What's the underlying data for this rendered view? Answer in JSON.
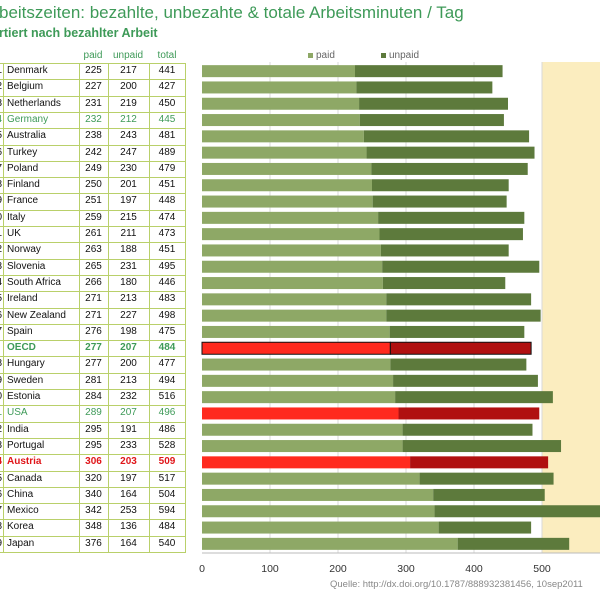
{
  "title": "beitszeiten: bezahlte, unbezahte & totale Arbeitsminuten / Tag",
  "subtitle": "rtiert nach bezahlter Arbeit",
  "table_headers": {
    "paid": "paid",
    "unpaid": "unpaid",
    "total": "total"
  },
  "legend": {
    "paid": "paid",
    "unpaid": "unpaid"
  },
  "source": "Quelle: http://dx.doi.org/10.1787/888932381456, 10sep2011",
  "colors": {
    "paid": "#8ea866",
    "unpaid": "#5d7a3c",
    "highlight_paid": "#ff2a1e",
    "highlight_unpaid": "#b01010",
    "background_band": "#fbedbf",
    "green_text": "#3e9a58",
    "red_text": "#e0161a"
  },
  "chart_data": {
    "type": "bar",
    "orientation": "horizontal",
    "stacked": true,
    "xlim": [
      0,
      600
    ],
    "x_ticks": [
      "0",
      "100",
      "200",
      "300",
      "400",
      "500"
    ],
    "series": [
      {
        "name": "paid"
      },
      {
        "name": "unpaid"
      }
    ],
    "rows": [
      {
        "rank": "1",
        "country": "Denmark",
        "paid": 225,
        "unpaid": 217,
        "total": 441,
        "style": "normal"
      },
      {
        "rank": "2",
        "country": "Belgium",
        "paid": 227,
        "unpaid": 200,
        "total": 427,
        "style": "normal"
      },
      {
        "rank": "3",
        "country": "Netherlands",
        "paid": 231,
        "unpaid": 219,
        "total": 450,
        "style": "normal"
      },
      {
        "rank": "4",
        "country": "Germany",
        "paid": 232,
        "unpaid": 212,
        "total": 445,
        "style": "green"
      },
      {
        "rank": "5",
        "country": "Australia",
        "paid": 238,
        "unpaid": 243,
        "total": 481,
        "style": "normal"
      },
      {
        "rank": "6",
        "country": "Turkey",
        "paid": 242,
        "unpaid": 247,
        "total": 489,
        "style": "normal"
      },
      {
        "rank": "7",
        "country": "Poland",
        "paid": 249,
        "unpaid": 230,
        "total": 479,
        "style": "normal"
      },
      {
        "rank": "8",
        "country": "Finland",
        "paid": 250,
        "unpaid": 201,
        "total": 451,
        "style": "normal"
      },
      {
        "rank": "9",
        "country": "France",
        "paid": 251,
        "unpaid": 197,
        "total": 448,
        "style": "normal"
      },
      {
        "rank": "0",
        "country": "Italy",
        "paid": 259,
        "unpaid": 215,
        "total": 474,
        "style": "normal"
      },
      {
        "rank": "1",
        "country": "UK",
        "paid": 261,
        "unpaid": 211,
        "total": 473,
        "style": "normal"
      },
      {
        "rank": "2",
        "country": "Norway",
        "paid": 263,
        "unpaid": 188,
        "total": 451,
        "style": "normal"
      },
      {
        "rank": "3",
        "country": "Slovenia",
        "paid": 265,
        "unpaid": 231,
        "total": 495,
        "style": "normal"
      },
      {
        "rank": "4",
        "country": "South Africa",
        "paid": 266,
        "unpaid": 180,
        "total": 446,
        "style": "normal"
      },
      {
        "rank": "5",
        "country": "Ireland",
        "paid": 271,
        "unpaid": 213,
        "total": 483,
        "style": "normal"
      },
      {
        "rank": "6",
        "country": "New Zealand",
        "paid": 271,
        "unpaid": 227,
        "total": 498,
        "style": "normal"
      },
      {
        "rank": "7",
        "country": "Spain",
        "paid": 276,
        "unpaid": 198,
        "total": 475,
        "style": "normal"
      },
      {
        "rank": "",
        "country": "OECD",
        "paid": 277,
        "unpaid": 207,
        "total": 484,
        "style": "oecd"
      },
      {
        "rank": "8",
        "country": "Hungary",
        "paid": 277,
        "unpaid": 200,
        "total": 477,
        "style": "normal"
      },
      {
        "rank": "9",
        "country": "Sweden",
        "paid": 281,
        "unpaid": 213,
        "total": 494,
        "style": "normal"
      },
      {
        "rank": "0",
        "country": "Estonia",
        "paid": 284,
        "unpaid": 232,
        "total": 516,
        "style": "normal"
      },
      {
        "rank": "1",
        "country": "USA",
        "paid": 289,
        "unpaid": 207,
        "total": 496,
        "style": "usa"
      },
      {
        "rank": "2",
        "country": "India",
        "paid": 295,
        "unpaid": 191,
        "total": 486,
        "style": "normal"
      },
      {
        "rank": "3",
        "country": "Portugal",
        "paid": 295,
        "unpaid": 233,
        "total": 528,
        "style": "normal"
      },
      {
        "rank": "4",
        "country": "Austria",
        "paid": 306,
        "unpaid": 203,
        "total": 509,
        "style": "austria"
      },
      {
        "rank": "5",
        "country": "Canada",
        "paid": 320,
        "unpaid": 197,
        "total": 517,
        "style": "normal"
      },
      {
        "rank": "6",
        "country": "China",
        "paid": 340,
        "unpaid": 164,
        "total": 504,
        "style": "normal"
      },
      {
        "rank": "7",
        "country": "Mexico",
        "paid": 342,
        "unpaid": 253,
        "total": 594,
        "style": "normal"
      },
      {
        "rank": "8",
        "country": "Korea",
        "paid": 348,
        "unpaid": 136,
        "total": 484,
        "style": "normal"
      },
      {
        "rank": "9",
        "country": "Japan",
        "paid": 376,
        "unpaid": 164,
        "total": 540,
        "style": "normal"
      }
    ]
  }
}
